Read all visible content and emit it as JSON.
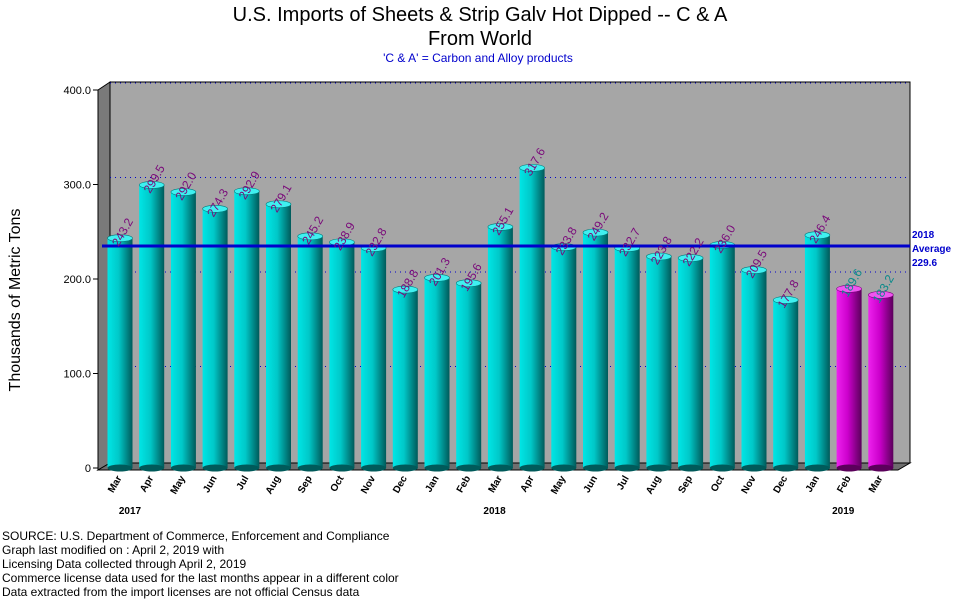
{
  "chart_data": {
    "type": "bar",
    "title": "U.S. Imports of Sheets & Strip Galv Hot Dipped -- C & A",
    "title_line2": "From World",
    "subtitle": "'C & A' = Carbon and Alloy products",
    "ylabel": "Thousands of Metric Tons",
    "xlabel": "",
    "ylim": [
      0,
      400
    ],
    "yticks": [
      0,
      100,
      200,
      300,
      400
    ],
    "ytick_labels": [
      "0",
      "100.0",
      "200.0",
      "300.0",
      "400.0"
    ],
    "grid": "horizontal dotted",
    "categories": [
      "Mar",
      "Apr",
      "May",
      "Jun",
      "Jul",
      "Aug",
      "Sep",
      "Oct",
      "Nov",
      "Dec",
      "Jan",
      "Feb",
      "Mar",
      "Apr",
      "May",
      "Jun",
      "Jul",
      "Aug",
      "Sep",
      "Oct",
      "Nov",
      "Dec",
      "Jan",
      "Feb",
      "Mar"
    ],
    "values": [
      243.2,
      299.5,
      292.0,
      274.3,
      292.9,
      279.1,
      245.2,
      238.9,
      232.8,
      188.8,
      201.3,
      195.6,
      255.1,
      317.6,
      233.8,
      249.2,
      232.7,
      223.8,
      222.2,
      236.0,
      209.5,
      177.8,
      246.4,
      189.6,
      183.2
    ],
    "value_labels": [
      "243.2",
      "299.5",
      "292.0",
      "274.3",
      "292.9",
      "279.1",
      "245.2",
      "238.9",
      "232.8",
      "188.8",
      "201.3",
      "195.6",
      "255.1",
      "317.6",
      "233.8",
      "249.2",
      "232.7",
      "223.8",
      "222.2",
      "236.0",
      "209.5",
      "177.8",
      "246.4",
      "189.6",
      "183.2"
    ],
    "license_data_flags": [
      false,
      false,
      false,
      false,
      false,
      false,
      false,
      false,
      false,
      false,
      false,
      false,
      false,
      false,
      false,
      false,
      false,
      false,
      false,
      false,
      false,
      false,
      false,
      true,
      true
    ],
    "years": [
      {
        "label": "2017",
        "at_index": 0
      },
      {
        "label": "2018",
        "at_index": 11.5
      },
      {
        "label": "2019",
        "at_index": 22.5
      }
    ],
    "average_line": {
      "value": 229.6,
      "label_lines": [
        "2018",
        "Average",
        "229.6"
      ],
      "color": "#0000cc"
    },
    "colors": {
      "bar_census": "#00c8c8",
      "bar_license": "#cc00cc",
      "plot_background": "#a6a6a6",
      "gridline": "#0000cc"
    }
  },
  "footer": {
    "line1": "SOURCE: U.S. Department of Commerce, Enforcement and Compliance",
    "line2": "Graph last modified on : April 2, 2019      with",
    "line3": "Licensing Data collected through April 2, 2019",
    "line4": "Commerce license data used for the last months appear in a different color",
    "line5": "Data extracted from the import licenses are not official Census data"
  }
}
